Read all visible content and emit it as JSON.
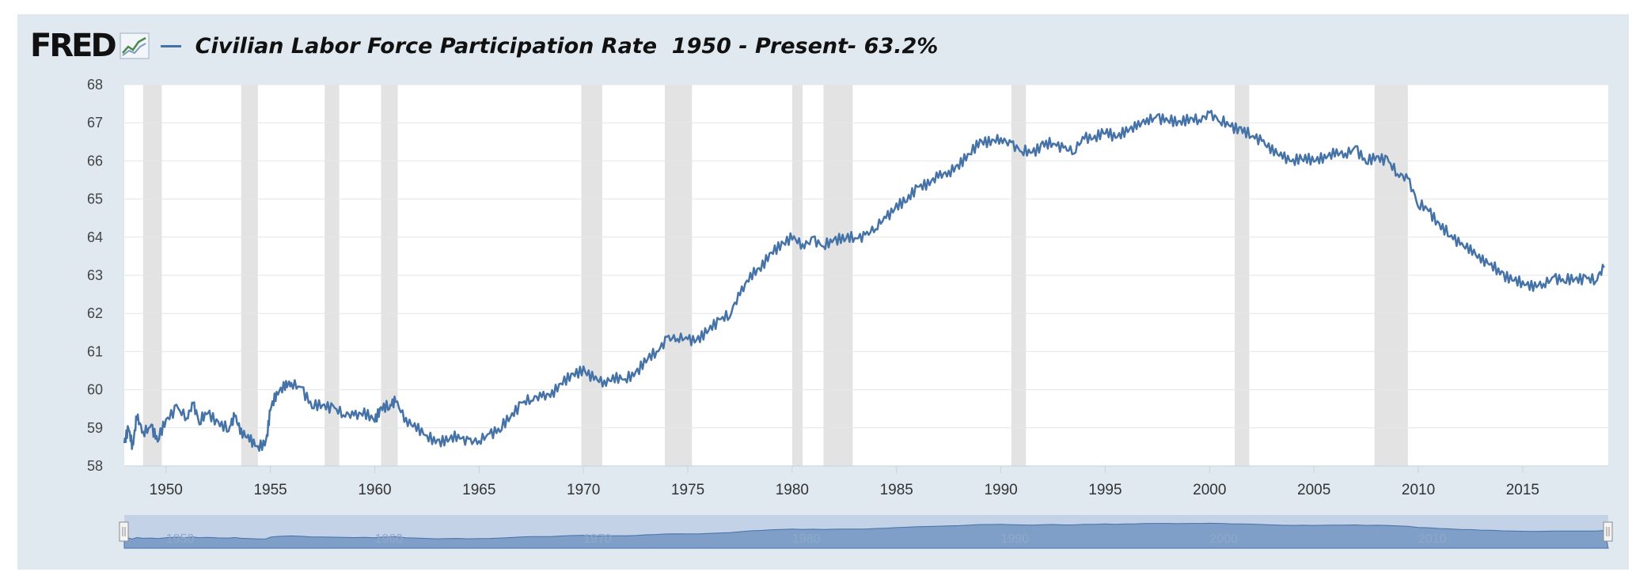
{
  "header": {
    "logo_text": "FRED",
    "logo_icon": "line-chart-icon",
    "title": "Civilian Labor Force Participation Rate  1950 - Present- 63.2%"
  },
  "colors": {
    "series": "#4572a7",
    "recession": "#e3e3e3",
    "panel": "#e1e9f0",
    "navigator_bg": "#c3d2e6",
    "navigator_fill": "#7f9ec8"
  },
  "chart_data": {
    "type": "line",
    "title": "Civilian Labor Force Participation Rate  1950 - Present- 63.2%",
    "xlabel": "",
    "ylabel": "",
    "xlim": [
      1948.0,
      2019.1
    ],
    "ylim": [
      58,
      68
    ],
    "y_ticks": [
      "58",
      "59",
      "60",
      "61",
      "62",
      "63",
      "64",
      "65",
      "66",
      "67",
      "68"
    ],
    "x_ticks": [
      "1950",
      "1955",
      "1960",
      "1965",
      "1970",
      "1975",
      "1980",
      "1985",
      "1990",
      "1995",
      "2000",
      "2005",
      "2010",
      "2015"
    ],
    "grid": "horizontal",
    "recessions": [
      [
        1948.9,
        1949.8
      ],
      [
        1953.6,
        1954.4
      ],
      [
        1957.6,
        1958.3
      ],
      [
        1960.3,
        1961.1
      ],
      [
        1969.9,
        1970.9
      ],
      [
        1973.9,
        1975.2
      ],
      [
        1980.0,
        1980.5
      ],
      [
        1981.5,
        1982.9
      ],
      [
        1990.5,
        1991.2
      ],
      [
        2001.2,
        2001.9
      ],
      [
        2007.9,
        2009.5
      ]
    ],
    "series": [
      {
        "name": "",
        "x": [
          1948.0,
          1948.2,
          1948.4,
          1948.6,
          1948.9,
          1949.3,
          1949.6,
          1950.0,
          1950.5,
          1951.0,
          1951.3,
          1951.6,
          1952.0,
          1952.5,
          1953.0,
          1953.3,
          1953.6,
          1954.0,
          1954.4,
          1954.8,
          1955.0,
          1955.3,
          1955.7,
          1956.0,
          1956.5,
          1957.0,
          1957.5,
          1958.0,
          1958.5,
          1959.0,
          1959.5,
          1960.0,
          1960.3,
          1960.7,
          1961.0,
          1961.5,
          1962.0,
          1962.5,
          1963.0,
          1963.5,
          1964.0,
          1964.5,
          1965.0,
          1965.5,
          1966.0,
          1966.5,
          1967.0,
          1967.5,
          1968.0,
          1968.5,
          1969.0,
          1969.5,
          1970.0,
          1970.5,
          1971.0,
          1971.5,
          1972.0,
          1972.5,
          1973.0,
          1973.5,
          1974.0,
          1974.5,
          1975.0,
          1975.5,
          1976.0,
          1976.5,
          1977.0,
          1977.5,
          1978.0,
          1978.5,
          1979.0,
          1979.5,
          1980.0,
          1980.5,
          1981.0,
          1981.5,
          1982.0,
          1982.5,
          1983.0,
          1983.5,
          1984.0,
          1984.5,
          1985.0,
          1985.5,
          1986.0,
          1986.5,
          1987.0,
          1987.5,
          1988.0,
          1988.5,
          1989.0,
          1989.5,
          1990.0,
          1990.5,
          1991.0,
          1991.5,
          1992.0,
          1992.5,
          1993.0,
          1993.5,
          1994.0,
          1994.5,
          1995.0,
          1995.5,
          1996.0,
          1996.5,
          1997.0,
          1997.5,
          1998.0,
          1998.5,
          1999.0,
          1999.5,
          2000.0,
          2000.5,
          2001.0,
          2001.5,
          2002.0,
          2002.5,
          2003.0,
          2003.5,
          2004.0,
          2004.5,
          2005.0,
          2005.5,
          2006.0,
          2006.5,
          2007.0,
          2007.5,
          2008.0,
          2008.5,
          2009.0,
          2009.5,
          2010.0,
          2010.5,
          2011.0,
          2011.5,
          2012.0,
          2012.5,
          2013.0,
          2013.5,
          2014.0,
          2014.5,
          2015.0,
          2015.5,
          2016.0,
          2016.5,
          2017.0,
          2017.5,
          2018.0,
          2018.5,
          2018.9
        ],
        "values": [
          58.6,
          59.0,
          58.5,
          59.3,
          58.9,
          59.0,
          58.7,
          59.2,
          59.5,
          59.3,
          59.6,
          59.2,
          59.4,
          59.1,
          59.0,
          59.3,
          58.9,
          58.7,
          58.5,
          58.6,
          59.5,
          59.9,
          60.1,
          60.2,
          60.0,
          59.6,
          59.6,
          59.5,
          59.4,
          59.3,
          59.4,
          59.2,
          59.5,
          59.6,
          59.7,
          59.2,
          59.0,
          58.8,
          58.6,
          58.7,
          58.8,
          58.6,
          58.7,
          58.8,
          59.0,
          59.3,
          59.6,
          59.8,
          59.8,
          59.9,
          60.2,
          60.4,
          60.5,
          60.3,
          60.2,
          60.3,
          60.3,
          60.4,
          60.8,
          61.0,
          61.3,
          61.4,
          61.3,
          61.3,
          61.6,
          61.8,
          62.0,
          62.5,
          63.0,
          63.2,
          63.6,
          63.8,
          64.0,
          63.8,
          63.9,
          63.8,
          63.9,
          64.0,
          64.0,
          64.0,
          64.3,
          64.5,
          64.8,
          65.0,
          65.3,
          65.4,
          65.6,
          65.7,
          65.9,
          66.2,
          66.5,
          66.5,
          66.6,
          66.4,
          66.3,
          66.2,
          66.4,
          66.5,
          66.3,
          66.3,
          66.6,
          66.6,
          66.8,
          66.6,
          66.8,
          66.9,
          67.1,
          67.1,
          67.1,
          67.0,
          67.1,
          67.1,
          67.2,
          67.1,
          66.9,
          66.8,
          66.7,
          66.5,
          66.3,
          66.1,
          66.0,
          66.1,
          66.0,
          66.1,
          66.2,
          66.2,
          66.3,
          66.0,
          66.1,
          66.0,
          65.7,
          65.5,
          64.9,
          64.7,
          64.3,
          64.1,
          63.8,
          63.7,
          63.4,
          63.3,
          63.0,
          62.9,
          62.8,
          62.7,
          62.8,
          62.9,
          62.9,
          62.9,
          62.9,
          62.9,
          63.2
        ]
      }
    ]
  }
}
